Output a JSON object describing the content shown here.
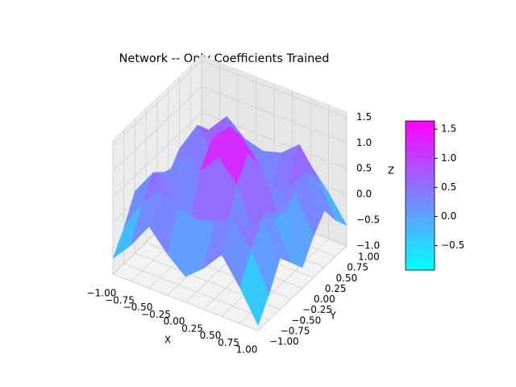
{
  "chart_data": {
    "type": "surface",
    "title": "Network -- Only Coefficients Trained",
    "xlabel": "X",
    "ylabel": "Y",
    "zlabel": "Z",
    "x": [
      -1,
      -0.75,
      -0.5,
      -0.25,
      0,
      0.25,
      0.5,
      0.75,
      1
    ],
    "y": [
      -1,
      -0.75,
      -0.5,
      -0.25,
      0,
      0.25,
      0.5,
      0.75,
      1
    ],
    "z": [
      [
        -0.7,
        -0.3,
        0.2,
        -0.2,
        -0.5,
        -0.2,
        0.2,
        -0.3,
        -0.9
      ],
      [
        -0.3,
        0.3,
        0.7,
        0.5,
        0.4,
        0.5,
        0.7,
        0.2,
        -0.5
      ],
      [
        0.2,
        0.7,
        0.3,
        0.0,
        0.2,
        0.0,
        0.3,
        0.6,
        0.0
      ],
      [
        -0.1,
        0.5,
        0.0,
        0.8,
        1.2,
        0.8,
        0.0,
        0.4,
        -0.3
      ],
      [
        -0.4,
        0.4,
        0.2,
        1.2,
        1.6,
        1.2,
        0.2,
        0.3,
        -0.6
      ],
      [
        -0.1,
        0.5,
        0.0,
        0.8,
        1.2,
        0.8,
        0.0,
        0.5,
        -0.2
      ],
      [
        0.2,
        0.8,
        0.3,
        0.0,
        0.2,
        0.0,
        0.3,
        0.7,
        0.1
      ],
      [
        0.0,
        0.5,
        0.9,
        0.6,
        0.5,
        0.6,
        0.9,
        0.4,
        -0.3
      ],
      [
        -0.5,
        -0.1,
        0.3,
        0.0,
        -0.2,
        0.0,
        0.3,
        -0.1,
        -0.6
      ]
    ],
    "xlim": [
      -1,
      1
    ],
    "ylim": [
      -1,
      1
    ],
    "zlim": [
      -1,
      1.6
    ],
    "xticks": [
      {
        "value": -1,
        "label": "−1.00"
      },
      {
        "value": -0.75,
        "label": "−0.75"
      },
      {
        "value": -0.5,
        "label": "−0.50"
      },
      {
        "value": -0.25,
        "label": "−0.25"
      },
      {
        "value": 0,
        "label": "0.00"
      },
      {
        "value": 0.25,
        "label": "0.25"
      },
      {
        "value": 0.5,
        "label": "0.50"
      },
      {
        "value": 0.75,
        "label": "0.75"
      },
      {
        "value": 1,
        "label": "1.00"
      }
    ],
    "yticks": [
      {
        "value": -1,
        "label": "−1.00"
      },
      {
        "value": -0.75,
        "label": "−0.75"
      },
      {
        "value": -0.5,
        "label": "−0.50"
      },
      {
        "value": -0.25,
        "label": "−0.25"
      },
      {
        "value": 0,
        "label": "0.00"
      },
      {
        "value": 0.25,
        "label": "0.25"
      },
      {
        "value": 0.5,
        "label": "0.50"
      },
      {
        "value": 0.75,
        "label": "0.75"
      },
      {
        "value": 1,
        "label": "1.00"
      }
    ],
    "zticks": [
      {
        "value": -1,
        "label": "−1.0"
      },
      {
        "value": -0.5,
        "label": "−0.5"
      },
      {
        "value": 0,
        "label": "0.0"
      },
      {
        "value": 0.5,
        "label": "0.5"
      },
      {
        "value": 1,
        "label": "1.0"
      },
      {
        "value": 1.5,
        "label": "1.5"
      }
    ],
    "colormap": "cool",
    "grid": true,
    "colorbar": {
      "clim": [
        -0.92,
        1.64
      ],
      "ticks": [
        {
          "value": -0.5,
          "label": "−0.5"
        },
        {
          "value": 0,
          "label": "0.0"
        },
        {
          "value": 0.5,
          "label": "0.5"
        },
        {
          "value": 1,
          "label": "1.0"
        },
        {
          "value": 1.5,
          "label": "1.5"
        }
      ]
    }
  }
}
